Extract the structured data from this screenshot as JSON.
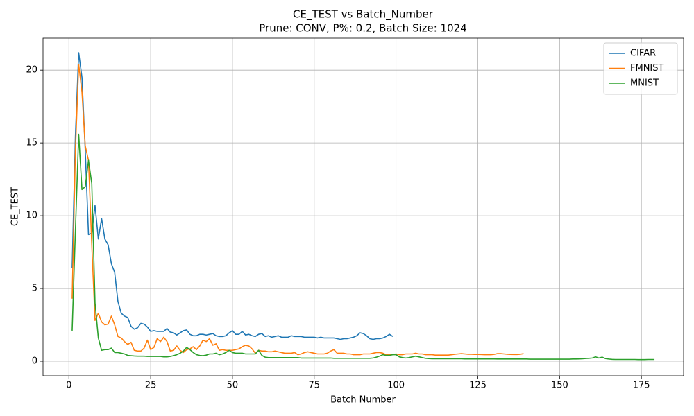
{
  "chart_data": {
    "type": "line",
    "title": "CE_TEST vs Batch_Number",
    "subtitle": "Prune: CONV, P%: 0.2, Batch Size: 1024",
    "x_label": "Batch Number",
    "y_label": "CE_TEST",
    "xlim": [
      -7.9,
      187.9
    ],
    "ylim": [
      -1.0,
      22.2
    ],
    "xticks": [
      0,
      25,
      50,
      75,
      100,
      125,
      150,
      175
    ],
    "yticks": [
      0,
      5,
      10,
      15,
      20
    ],
    "grid": true,
    "legend_position": "upper-right",
    "x": [
      1,
      2,
      3,
      4,
      5,
      6,
      7,
      8,
      9,
      10,
      11,
      12,
      13,
      14,
      15,
      16,
      17,
      18,
      19,
      20,
      21,
      22,
      23,
      24,
      25,
      26,
      27,
      28,
      29,
      30,
      31,
      32,
      33,
      34,
      35,
      36,
      37,
      38,
      39,
      40,
      41,
      42,
      43,
      44,
      45,
      46,
      47,
      48,
      49,
      50,
      51,
      52,
      53,
      54,
      55,
      56,
      57,
      58,
      59,
      60,
      61,
      62,
      63,
      64,
      65,
      66,
      67,
      68,
      69,
      70,
      71,
      72,
      73,
      74,
      75,
      76,
      77,
      78,
      79,
      80,
      81,
      82,
      83,
      84,
      85,
      86,
      87,
      88,
      89,
      90,
      91,
      92,
      93,
      94,
      95,
      96,
      97,
      98,
      99,
      100,
      101,
      102,
      103,
      104,
      105,
      106,
      107,
      108,
      109,
      110,
      111,
      112,
      113,
      114,
      115,
      116,
      117,
      118,
      119,
      120,
      121,
      122,
      123,
      124,
      125,
      126,
      127,
      128,
      129,
      130,
      131,
      132,
      133,
      134,
      135,
      136,
      137,
      138,
      139,
      140,
      141,
      142,
      143,
      144,
      145,
      146,
      147,
      148,
      149,
      150,
      151,
      152,
      153,
      154,
      155,
      156,
      157,
      158,
      159,
      160,
      161,
      162,
      163,
      164,
      165,
      166,
      167,
      168,
      169,
      170,
      171,
      172,
      173,
      174,
      175,
      176,
      177,
      178,
      179
    ],
    "series": [
      {
        "name": "CIFAR",
        "color": "#1f77b4",
        "values": [
          6.4,
          15.5,
          21.2,
          19.5,
          14.5,
          8.7,
          8.8,
          10.7,
          8.4,
          9.8,
          8.4,
          8.0,
          6.7,
          6.1,
          4.1,
          3.3,
          3.1,
          3.0,
          2.4,
          2.2,
          2.3,
          2.6,
          2.55,
          2.35,
          2.05,
          2.1,
          2.05,
          2.05,
          2.05,
          2.25,
          2.0,
          1.95,
          1.8,
          1.95,
          2.1,
          2.15,
          1.85,
          1.75,
          1.75,
          1.85,
          1.85,
          1.8,
          1.85,
          1.9,
          1.75,
          1.7,
          1.7,
          1.75,
          1.95,
          2.1,
          1.85,
          1.85,
          2.05,
          1.8,
          1.85,
          1.75,
          1.7,
          1.85,
          1.9,
          1.7,
          1.75,
          1.65,
          1.7,
          1.75,
          1.65,
          1.65,
          1.65,
          1.75,
          1.7,
          1.7,
          1.7,
          1.65,
          1.65,
          1.65,
          1.65,
          1.6,
          1.65,
          1.6,
          1.6,
          1.6,
          1.6,
          1.55,
          1.5,
          1.55,
          1.55,
          1.6,
          1.65,
          1.75,
          1.95,
          1.9,
          1.75,
          1.55,
          1.5,
          1.55,
          1.55,
          1.6,
          1.7,
          1.85,
          1.7,
          null,
          null,
          null,
          null,
          null,
          null,
          null,
          null,
          null,
          null,
          null,
          null,
          null,
          null,
          null,
          null,
          null,
          null,
          null,
          null,
          null,
          null,
          null,
          null,
          null,
          null,
          null,
          null,
          null,
          null,
          null,
          null,
          null,
          null,
          null,
          null,
          null,
          null,
          null,
          null,
          null,
          null,
          null,
          null,
          null,
          null,
          null,
          null,
          null,
          null,
          null,
          null,
          null,
          null,
          null,
          null,
          null,
          null,
          null,
          null,
          null,
          null,
          null,
          null,
          null,
          null,
          null,
          null,
          null,
          null,
          null,
          null,
          null,
          null,
          null,
          null,
          null,
          null,
          null,
          null
        ]
      },
      {
        "name": "FMNIST",
        "color": "#ff7f0e",
        "values": [
          4.3,
          14.5,
          20.4,
          18.5,
          14.8,
          13.8,
          8.0,
          2.8,
          3.3,
          2.7,
          2.5,
          2.55,
          3.1,
          2.5,
          1.7,
          1.6,
          1.35,
          1.15,
          1.3,
          0.75,
          0.7,
          0.7,
          0.9,
          1.45,
          0.8,
          0.95,
          1.55,
          1.35,
          1.65,
          1.35,
          0.7,
          0.75,
          1.05,
          0.75,
          0.6,
          0.8,
          0.85,
          1.0,
          0.8,
          1.05,
          1.45,
          1.35,
          1.55,
          1.1,
          1.2,
          0.75,
          0.8,
          0.75,
          0.75,
          0.75,
          0.8,
          0.85,
          1.0,
          1.1,
          1.05,
          0.85,
          0.55,
          0.75,
          0.7,
          0.7,
          0.65,
          0.65,
          0.7,
          0.65,
          0.6,
          0.55,
          0.55,
          0.55,
          0.6,
          0.45,
          0.5,
          0.6,
          0.65,
          0.6,
          0.55,
          0.5,
          0.5,
          0.5,
          0.55,
          0.7,
          0.8,
          0.55,
          0.55,
          0.55,
          0.5,
          0.5,
          0.45,
          0.45,
          0.45,
          0.5,
          0.5,
          0.5,
          0.55,
          0.6,
          0.6,
          0.55,
          0.45,
          0.45,
          0.45,
          0.5,
          0.45,
          0.45,
          0.5,
          0.5,
          0.5,
          0.55,
          0.5,
          0.5,
          0.45,
          0.45,
          0.45,
          0.42,
          0.42,
          0.42,
          0.42,
          0.42,
          0.45,
          0.48,
          0.5,
          0.52,
          0.5,
          0.48,
          0.48,
          0.47,
          0.47,
          0.46,
          0.45,
          0.45,
          0.45,
          0.47,
          0.52,
          0.52,
          0.5,
          0.48,
          0.47,
          0.46,
          0.46,
          0.48,
          0.52,
          null,
          null,
          null,
          null,
          null,
          null,
          null,
          null,
          null,
          null,
          null,
          null,
          null,
          null,
          null,
          null,
          null,
          null,
          null,
          null,
          null,
          null,
          null,
          null,
          null,
          null,
          null,
          null,
          null,
          null,
          null,
          null,
          null,
          null,
          null,
          null,
          null,
          null,
          null,
          null
        ]
      },
      {
        "name": "MNIST",
        "color": "#2ca02c",
        "values": [
          2.1,
          9.0,
          15.6,
          11.8,
          12.0,
          13.8,
          12.2,
          4.0,
          1.6,
          0.75,
          0.8,
          0.8,
          0.9,
          0.6,
          0.6,
          0.55,
          0.5,
          0.4,
          0.38,
          0.36,
          0.35,
          0.35,
          0.35,
          0.33,
          0.33,
          0.33,
          0.33,
          0.33,
          0.3,
          0.3,
          0.33,
          0.38,
          0.45,
          0.55,
          0.7,
          0.95,
          0.8,
          0.6,
          0.45,
          0.4,
          0.38,
          0.42,
          0.5,
          0.5,
          0.55,
          0.45,
          0.5,
          0.6,
          0.75,
          0.6,
          0.55,
          0.55,
          0.55,
          0.5,
          0.5,
          0.5,
          0.5,
          0.75,
          0.4,
          0.28,
          0.25,
          0.25,
          0.25,
          0.25,
          0.25,
          0.25,
          0.25,
          0.25,
          0.25,
          0.25,
          0.22,
          0.22,
          0.22,
          0.22,
          0.22,
          0.22,
          0.22,
          0.22,
          0.22,
          0.22,
          0.2,
          0.2,
          0.2,
          0.2,
          0.2,
          0.2,
          0.2,
          0.2,
          0.2,
          0.2,
          0.2,
          0.2,
          0.22,
          0.28,
          0.35,
          0.45,
          0.4,
          0.4,
          0.45,
          0.45,
          0.3,
          0.25,
          0.22,
          0.25,
          0.3,
          0.35,
          0.3,
          0.25,
          0.2,
          0.18,
          0.17,
          0.17,
          0.17,
          0.17,
          0.17,
          0.17,
          0.17,
          0.17,
          0.17,
          0.17,
          0.16,
          0.16,
          0.16,
          0.16,
          0.16,
          0.16,
          0.16,
          0.16,
          0.16,
          0.16,
          0.15,
          0.15,
          0.15,
          0.15,
          0.15,
          0.15,
          0.15,
          0.15,
          0.15,
          0.15,
          0.14,
          0.14,
          0.14,
          0.14,
          0.14,
          0.14,
          0.14,
          0.14,
          0.14,
          0.14,
          0.14,
          0.14,
          0.14,
          0.15,
          0.15,
          0.16,
          0.17,
          0.19,
          0.2,
          0.22,
          0.3,
          0.22,
          0.28,
          0.18,
          0.15,
          0.13,
          0.12,
          0.12,
          0.12,
          0.12,
          0.12,
          0.12,
          0.12,
          0.11,
          0.11,
          0.11,
          0.12,
          0.12,
          0.12
        ]
      }
    ]
  }
}
